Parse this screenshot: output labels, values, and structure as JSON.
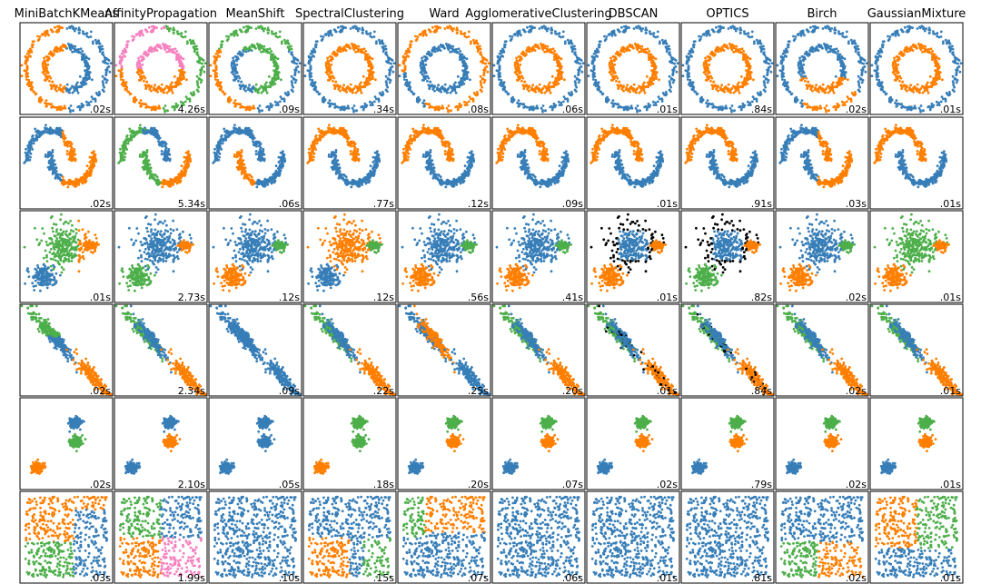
{
  "chart_data": {
    "type": "scatter",
    "title": "",
    "algorithms": [
      "MiniBatchKMeans",
      "AffinityPropagation",
      "MeanShift",
      "SpectralClustering",
      "Ward",
      "AgglomerativeClustering",
      "DBSCAN",
      "OPTICS",
      "Birch",
      "GaussianMixture"
    ],
    "datasets": [
      "noisy_circles",
      "noisy_moons",
      "varied",
      "aniso",
      "blobs",
      "no_structure"
    ],
    "timings": [
      [
        ".02s",
        "4.26s",
        ".09s",
        ".34s",
        ".08s",
        ".06s",
        ".01s",
        ".84s",
        ".02s",
        ".01s"
      ],
      [
        ".02s",
        "5.34s",
        ".06s",
        ".77s",
        ".12s",
        ".09s",
        ".01s",
        ".91s",
        ".03s",
        ".01s"
      ],
      [
        ".01s",
        "2.73s",
        ".12s",
        ".12s",
        ".56s",
        ".41s",
        ".01s",
        ".82s",
        ".02s",
        ".01s"
      ],
      [
        ".02s",
        "2.34s",
        ".09s",
        ".22s",
        ".25s",
        ".20s",
        ".01s",
        ".84s",
        ".02s",
        ".01s"
      ],
      [
        ".02s",
        "2.10s",
        ".05s",
        ".18s",
        ".20s",
        ".07s",
        ".02s",
        ".79s",
        ".02s",
        ".01s"
      ],
      [
        ".03s",
        "1.99s",
        ".10s",
        ".15s",
        ".07s",
        ".06s",
        ".01s",
        ".81s",
        ".02s",
        ".01s"
      ]
    ],
    "colors": {
      "blue": "#377eb8",
      "orange": "#ff7f00",
      "green": "#4daf4a",
      "pink": "#f781bf",
      "noise": "#000000"
    },
    "grid": false,
    "axis_ticks": false
  }
}
